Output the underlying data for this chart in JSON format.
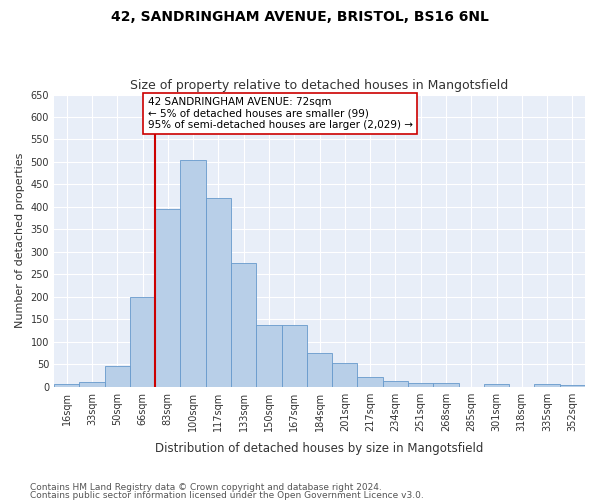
{
  "title": "42, SANDRINGHAM AVENUE, BRISTOL, BS16 6NL",
  "subtitle": "Size of property relative to detached houses in Mangotsfield",
  "xlabel": "Distribution of detached houses by size in Mangotsfield",
  "ylabel": "Number of detached properties",
  "bin_labels": [
    "16sqm",
    "33sqm",
    "50sqm",
    "66sqm",
    "83sqm",
    "100sqm",
    "117sqm",
    "133sqm",
    "150sqm",
    "167sqm",
    "184sqm",
    "201sqm",
    "217sqm",
    "234sqm",
    "251sqm",
    "268sqm",
    "285sqm",
    "301sqm",
    "318sqm",
    "335sqm",
    "352sqm"
  ],
  "bar_values": [
    5,
    10,
    45,
    200,
    395,
    505,
    420,
    275,
    138,
    138,
    75,
    52,
    22,
    12,
    9,
    8,
    0,
    6,
    0,
    7,
    4
  ],
  "bar_color": "#b8cfe8",
  "bar_edge_color": "#6699cc",
  "background_color": "#e8eef8",
  "grid_color": "#ffffff",
  "vline_x_index": 3,
  "vline_color": "#cc0000",
  "annotation_text": "42 SANDRINGHAM AVENUE: 72sqm\n← 5% of detached houses are smaller (99)\n95% of semi-detached houses are larger (2,029) →",
  "annotation_box_color": "#ffffff",
  "annotation_box_edge": "#cc0000",
  "ylim": [
    0,
    650
  ],
  "yticks": [
    0,
    50,
    100,
    150,
    200,
    250,
    300,
    350,
    400,
    450,
    500,
    550,
    600,
    650
  ],
  "footer_line1": "Contains HM Land Registry data © Crown copyright and database right 2024.",
  "footer_line2": "Contains public sector information licensed under the Open Government Licence v3.0.",
  "title_fontsize": 10,
  "subtitle_fontsize": 9,
  "xlabel_fontsize": 8.5,
  "ylabel_fontsize": 8,
  "tick_fontsize": 7,
  "annotation_fontsize": 7.5,
  "footer_fontsize": 6.5
}
